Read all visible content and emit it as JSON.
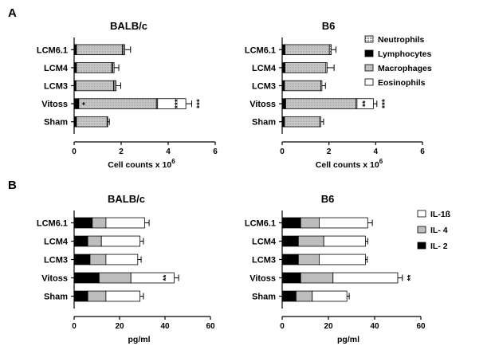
{
  "panels": [
    {
      "letter": "A",
      "xlabel": "Cell counts x 10",
      "xlabel_sup": "6",
      "xlim": [
        0,
        6
      ],
      "xticks": [
        "0",
        "2",
        "4",
        "6"
      ],
      "legend": [
        "Neutrophils",
        "Lymphocytes",
        "Macrophages",
        "Eosinophils"
      ]
    },
    {
      "letter": "B",
      "xlabel": "pg/ml",
      "xlabel_sup": "",
      "xlim": [
        0,
        60
      ],
      "xticks": [
        "0",
        "20",
        "40",
        "60"
      ],
      "legend": [
        "IL-1ß",
        "IL- 4",
        "IL- 2"
      ]
    }
  ],
  "colors": {
    "neutrophils": "#ffffff",
    "lymphocytes": "#000000",
    "macrophages": "#c4c4c4",
    "eosinophils": "#ffffff",
    "il1b": "#ffffff",
    "il4": "#bdbdbd",
    "il2": "#000000"
  },
  "chart_data": [
    {
      "type": "bar",
      "orientation": "horizontal-stacked",
      "title": "BALB/c",
      "categories": [
        "LCM6.1",
        "LCM4",
        "LCM3",
        "Vitoss",
        "Sham"
      ],
      "xlabel": "Cell counts x 10^6",
      "xlim": [
        0,
        6
      ],
      "series": [
        {
          "name": "Lymphocytes",
          "values": [
            0.1,
            0.1,
            0.08,
            0.2,
            0.1
          ]
        },
        {
          "name": "Macrophages",
          "values": [
            1.95,
            1.5,
            1.6,
            3.3,
            1.3
          ]
        },
        {
          "name": "Neutrophils",
          "values": [
            0.05,
            0.05,
            0.05,
            0.05,
            0.03
          ]
        },
        {
          "name": "Eosinophils",
          "values": [
            0.05,
            0.05,
            0.05,
            1.2,
            0.0
          ]
        }
      ],
      "errors": [
        0.25,
        0.2,
        0.2,
        0.25,
        0.07
      ],
      "annotations": [
        {
          "category": "Vitoss",
          "text": "*",
          "position": "inside"
        },
        {
          "category": "Vitoss",
          "text": "***",
          "position": "bar"
        },
        {
          "category": "Vitoss",
          "text": "***",
          "position": "end"
        }
      ]
    },
    {
      "type": "bar",
      "orientation": "horizontal-stacked",
      "title": "B6",
      "categories": [
        "LCM6.1",
        "LCM4",
        "LCM3",
        "Vitoss",
        "Sham"
      ],
      "xlabel": "Cell counts x 10^6",
      "xlim": [
        0,
        6
      ],
      "series": [
        {
          "name": "Lymphocytes",
          "values": [
            0.12,
            0.12,
            0.1,
            0.15,
            0.1
          ]
        },
        {
          "name": "Macrophages",
          "values": [
            1.9,
            1.75,
            1.55,
            3.0,
            1.5
          ]
        },
        {
          "name": "Neutrophils",
          "values": [
            0.08,
            0.05,
            0.05,
            0.05,
            0.05
          ]
        },
        {
          "name": "Eosinophils",
          "values": [
            0.0,
            0.0,
            0.0,
            0.7,
            0.0
          ]
        }
      ],
      "errors": [
        0.2,
        0.3,
        0.15,
        0.15,
        0.12
      ],
      "annotations": [
        {
          "category": "Vitoss",
          "text": "**",
          "position": "bar"
        },
        {
          "category": "Vitoss",
          "text": "***",
          "position": "end"
        }
      ]
    },
    {
      "type": "bar",
      "orientation": "horizontal-stacked",
      "title": "BALB/c",
      "categories": [
        "LCM6.1",
        "LCM4",
        "LCM3",
        "Vitoss",
        "Sham"
      ],
      "xlabel": "pg/ml",
      "xlim": [
        0,
        60
      ],
      "series": [
        {
          "name": "IL- 2",
          "values": [
            8,
            6,
            7,
            11,
            6
          ]
        },
        {
          "name": "IL- 4",
          "values": [
            6,
            6,
            7,
            14,
            8
          ]
        },
        {
          "name": "IL-1ß",
          "values": [
            17,
            17,
            14,
            19,
            15
          ]
        }
      ],
      "errors": [
        2,
        1.5,
        1.5,
        2,
        1.5
      ],
      "annotations": [
        {
          "category": "Vitoss",
          "text": "**",
          "position": "bar"
        }
      ]
    },
    {
      "type": "bar",
      "orientation": "horizontal-stacked",
      "title": "B6",
      "categories": [
        "LCM6.1",
        "LCM4",
        "LCM3",
        "Vitoss",
        "Sham"
      ],
      "xlabel": "pg/ml",
      "xlim": [
        0,
        60
      ],
      "series": [
        {
          "name": "IL- 2",
          "values": [
            8,
            7,
            7,
            8,
            6
          ]
        },
        {
          "name": "IL- 4",
          "values": [
            8,
            11,
            9,
            14,
            7
          ]
        },
        {
          "name": "IL-1ß",
          "values": [
            21,
            18,
            20,
            28,
            15
          ]
        }
      ],
      "errors": [
        2,
        1,
        0.8,
        2,
        1
      ],
      "annotations": [
        {
          "category": "Vitoss",
          "text": "**",
          "position": "end"
        }
      ]
    }
  ]
}
